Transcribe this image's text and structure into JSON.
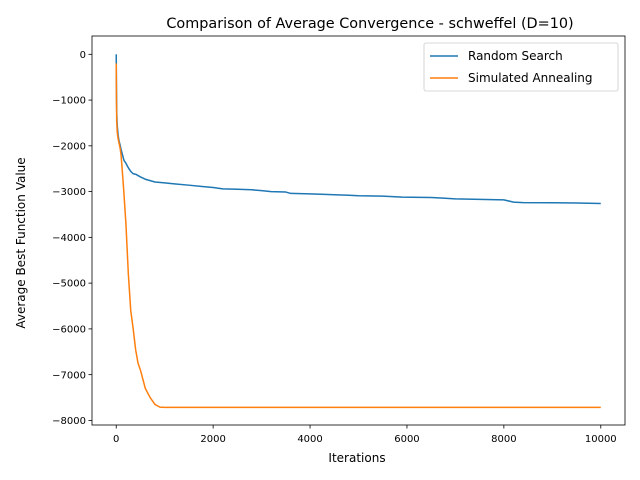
{
  "chart_data": {
    "type": "line",
    "title": "Comparison of Average Convergence - schweffel (D=10)",
    "xlabel": "Iterations",
    "ylabel": "Average Best Function Value",
    "xlim": [
      -500,
      10500
    ],
    "ylim": [
      -8100,
      400
    ],
    "xticks": [
      0,
      2000,
      4000,
      6000,
      8000,
      10000
    ],
    "yticks": [
      0,
      -1000,
      -2000,
      -3000,
      -4000,
      -5000,
      -6000,
      -7000,
      -8000
    ],
    "grid": false,
    "legend_position": "top-right",
    "series": [
      {
        "name": "Random Search",
        "color": "#1f77b4",
        "x": [
          0,
          5,
          10,
          20,
          40,
          60,
          80,
          100,
          130,
          160,
          200,
          250,
          300,
          350,
          400,
          450,
          500,
          600,
          700,
          800,
          1000,
          1200,
          1500,
          1800,
          2000,
          2200,
          2500,
          2800,
          3000,
          3200,
          3500,
          3600,
          4000,
          4300,
          4500,
          4800,
          5000,
          5500,
          5900,
          6500,
          6700,
          7000,
          7500,
          8000,
          8200,
          8400,
          9000,
          9500,
          10000
        ],
        "y": [
          0,
          -800,
          -1250,
          -1550,
          -1780,
          -1900,
          -1980,
          -2080,
          -2200,
          -2320,
          -2380,
          -2480,
          -2560,
          -2610,
          -2620,
          -2650,
          -2680,
          -2730,
          -2760,
          -2790,
          -2810,
          -2830,
          -2860,
          -2890,
          -2910,
          -2940,
          -2950,
          -2960,
          -2980,
          -3000,
          -3010,
          -3040,
          -3050,
          -3060,
          -3070,
          -3080,
          -3090,
          -3100,
          -3120,
          -3130,
          -3140,
          -3160,
          -3170,
          -3180,
          -3230,
          -3240,
          -3245,
          -3250,
          -3260
        ]
      },
      {
        "name": "Simulated Annealing",
        "color": "#ff7f0e",
        "x": [
          0,
          5,
          10,
          20,
          40,
          60,
          80,
          100,
          150,
          200,
          250,
          300,
          350,
          400,
          450,
          500,
          600,
          700,
          800,
          900,
          1000,
          2000,
          4000,
          6000,
          8000,
          10000
        ],
        "y": [
          -200,
          -1000,
          -1450,
          -1700,
          -1850,
          -1950,
          -2050,
          -2200,
          -2900,
          -3700,
          -4800,
          -5600,
          -6000,
          -6450,
          -6750,
          -6900,
          -7300,
          -7500,
          -7650,
          -7710,
          -7715,
          -7715,
          -7715,
          -7715,
          -7715,
          -7715
        ]
      }
    ]
  }
}
